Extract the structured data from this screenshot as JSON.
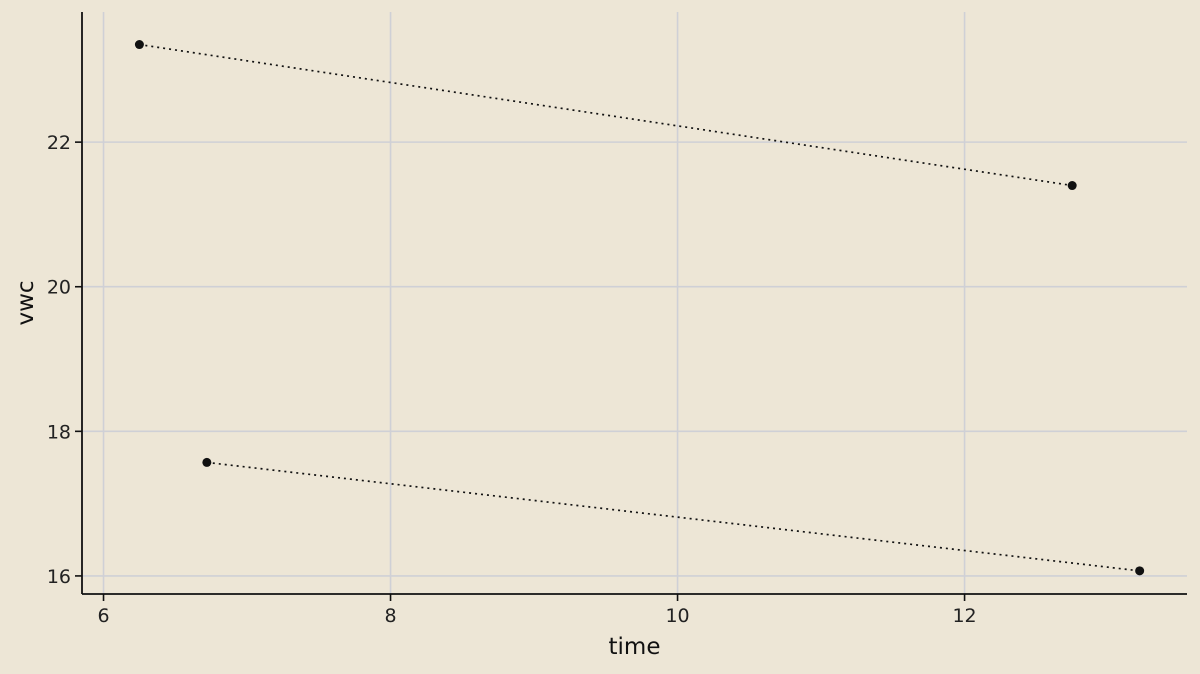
{
  "chart_data": {
    "type": "line",
    "xlabel": "time",
    "ylabel": "vwc",
    "xlim": [
      5.85,
      13.55
    ],
    "ylim": [
      15.75,
      23.8
    ],
    "x_ticks": [
      6,
      8,
      10,
      12
    ],
    "y_ticks": [
      16,
      18,
      20,
      22
    ],
    "grid": true,
    "series": [
      {
        "points": [
          {
            "x": 6.25,
            "y": 23.35
          },
          {
            "x": 12.75,
            "y": 21.4
          }
        ]
      },
      {
        "points": [
          {
            "x": 6.72,
            "y": 17.57
          },
          {
            "x": 13.22,
            "y": 16.07
          }
        ]
      }
    ],
    "colors": {
      "background": "#ede6d6",
      "grid": "#cfd0d6",
      "ink": "#111111"
    }
  }
}
